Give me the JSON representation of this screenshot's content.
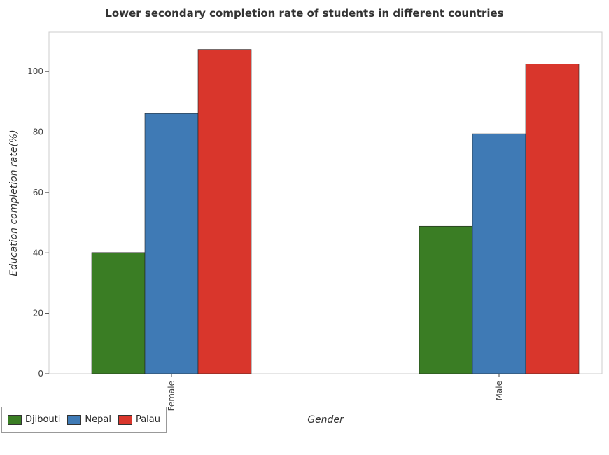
{
  "chart_data": {
    "type": "bar",
    "title": "Lower secondary completion rate of students in different countries",
    "xlabel": "Gender",
    "ylabel": "Education completion rate(%)",
    "categories": [
      "Female",
      "Male"
    ],
    "series": [
      {
        "name": "Djibouti",
        "color": "#3a7d24",
        "values": [
          40.1,
          48.8
        ]
      },
      {
        "name": "Nepal",
        "color": "#3f7ab5",
        "values": [
          86.1,
          79.4
        ]
      },
      {
        "name": "Palau",
        "color": "#d9362c",
        "values": [
          107.3,
          102.5
        ]
      }
    ],
    "ylim": [
      0,
      113
    ],
    "yticks": [
      0,
      20,
      40,
      60,
      80,
      100
    ],
    "grid": false,
    "legend": "bottom-left"
  }
}
